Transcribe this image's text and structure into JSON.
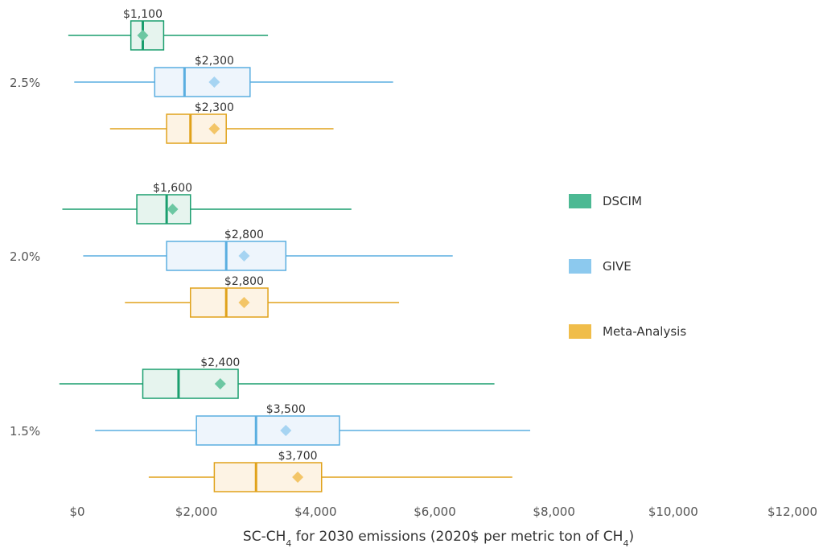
{
  "chart_data": {
    "type": "box",
    "xlabel": "SC-CH₄ for 2030 emissions (2020$ per metric ton of CH₄)",
    "xlabel_parts": {
      "pre": "SC-CH",
      "sub1": "4",
      "mid": " for 2030 emissions (2020$ per metric ton of CH",
      "sub2": "4",
      "post": ")"
    },
    "xlim": [
      0,
      12000
    ],
    "xticks": [
      {
        "value": 0,
        "label": "$0"
      },
      {
        "value": 2000,
        "label": "$2,000"
      },
      {
        "value": 4000,
        "label": "$4,000"
      },
      {
        "value": 6000,
        "label": "$6,000"
      },
      {
        "value": 8000,
        "label": "$8,000"
      },
      {
        "value": 10000,
        "label": "$10,000"
      },
      {
        "value": 12000,
        "label": "$12,000"
      }
    ],
    "grid": false,
    "legend_position": "right",
    "series": [
      {
        "name": "DSCIM",
        "color": "#1a9e6e",
        "fill": "#e6f4ee",
        "legend_color": "#4cb993",
        "mean_color": "#6cc7a2"
      },
      {
        "name": "GIVE",
        "color": "#5aaee0",
        "fill": "#eef5fc",
        "legend_color": "#8cc9ee",
        "mean_color": "#a6d4f2"
      },
      {
        "name": "Meta-Analysis",
        "color": "#e0a21b",
        "fill": "#fdf3e4",
        "legend_color": "#f0bd4a",
        "mean_color": "#f3c567"
      }
    ],
    "groups": [
      {
        "label": "2.5%",
        "boxes": [
          {
            "series": "DSCIM",
            "whisker_low": -150,
            "q1": 900,
            "median": 1100,
            "q3": 1450,
            "whisker_high": 3200,
            "mean": 1100,
            "mean_label": "$1,100"
          },
          {
            "series": "GIVE",
            "whisker_low": -50,
            "q1": 1300,
            "median": 1800,
            "q3": 2900,
            "whisker_high": 5300,
            "mean": 2300,
            "mean_label": "$2,300"
          },
          {
            "series": "Meta-Analysis",
            "whisker_low": 550,
            "q1": 1500,
            "median": 1900,
            "q3": 2500,
            "whisker_high": 4300,
            "mean": 2300,
            "mean_label": "$2,300"
          }
        ]
      },
      {
        "label": "2.0%",
        "boxes": [
          {
            "series": "DSCIM",
            "whisker_low": -250,
            "q1": 1000,
            "median": 1500,
            "q3": 1900,
            "whisker_high": 4600,
            "mean": 1600,
            "mean_label": "$1,600"
          },
          {
            "series": "GIVE",
            "whisker_low": 100,
            "q1": 1500,
            "median": 2500,
            "q3": 3500,
            "whisker_high": 6300,
            "mean": 2800,
            "mean_label": "$2,800"
          },
          {
            "series": "Meta-Analysis",
            "whisker_low": 800,
            "q1": 1900,
            "median": 2500,
            "q3": 3200,
            "whisker_high": 5400,
            "mean": 2800,
            "mean_label": "$2,800"
          }
        ]
      },
      {
        "label": "1.5%",
        "boxes": [
          {
            "series": "DSCIM",
            "whisker_low": -300,
            "q1": 1100,
            "median": 1700,
            "q3": 2700,
            "whisker_high": 7000,
            "mean": 2400,
            "mean_label": "$2,400"
          },
          {
            "series": "GIVE",
            "whisker_low": 300,
            "q1": 2000,
            "median": 3000,
            "q3": 4400,
            "whisker_high": 7600,
            "mean": 3500,
            "mean_label": "$3,500"
          },
          {
            "series": "Meta-Analysis",
            "whisker_low": 1200,
            "q1": 2300,
            "median": 3000,
            "q3": 4100,
            "whisker_high": 7300,
            "mean": 3700,
            "mean_label": "$3,700"
          }
        ]
      }
    ]
  }
}
